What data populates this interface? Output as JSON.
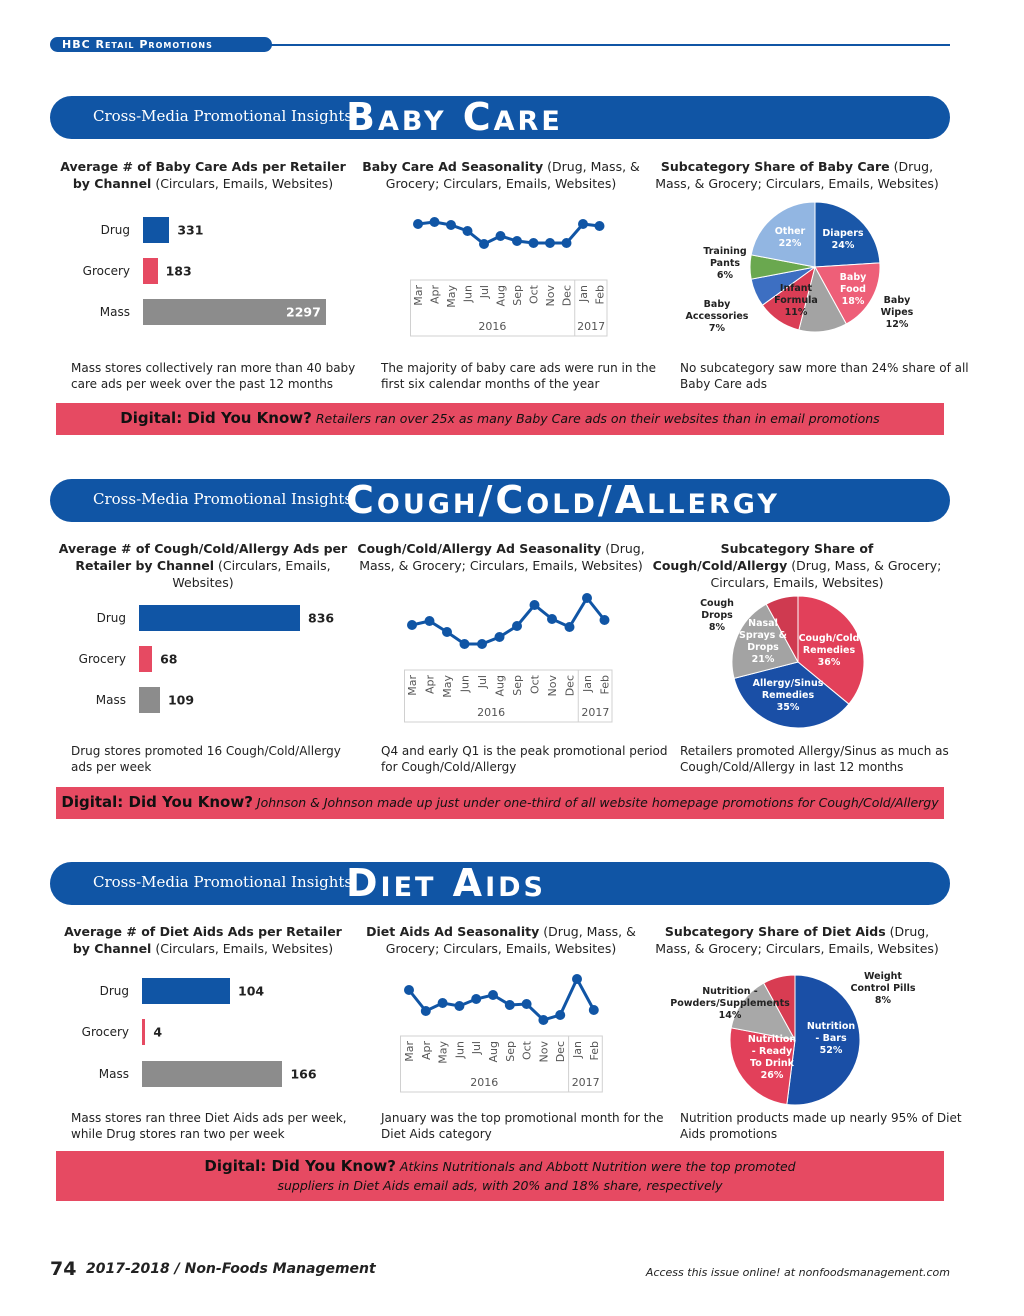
{
  "header": {
    "section": "HBC Retail Promotions"
  },
  "colors": {
    "brand_blue": "#1055a5",
    "dyk_red": "#e64a62",
    "bar_blue": "#1055a5",
    "bar_red": "#e64a62",
    "bar_gray": "#8c8c8c"
  },
  "sections": [
    {
      "subtitle": "Cross-Media Promotional Insights",
      "title": "Baby Care",
      "headings": [
        {
          "bold": "Average # of Baby Care Ads per Retailer by Channel",
          "normal": " (Circulars, Emails, Websites)"
        },
        {
          "bold": "Baby Care Ad Seasonality",
          "normal": " (Drug, Mass, & Grocery; Circulars, Emails, Websites)"
        },
        {
          "bold": "Subcategory Share of Baby Care",
          "normal": " (Drug, Mass, & Grocery; Circulars, Emails, Websites)"
        }
      ],
      "captions": [
        "Mass stores collectively ran more than 40 baby care ads per week over the past 12 months",
        "The majority of baby care ads were run in the first six calendar months of the year",
        "No subcategory saw more than 24% share of all Baby Care ads"
      ],
      "dyk": {
        "lead": "Digital: Did You Know?",
        "text": " Retailers ran over 25x as many Baby Care ads on their websites than in email promotions"
      }
    },
    {
      "subtitle": "Cross-Media Promotional Insights",
      "title": "Cough/Cold/Allergy",
      "headings": [
        {
          "bold": "Average # of Cough/Cold/Allergy Ads per Retailer by Channel",
          "normal": " (Circulars, Emails, Websites)"
        },
        {
          "bold": "Cough/Cold/Allergy Ad Seasonality",
          "normal": " (Drug, Mass, & Grocery; Circulars, Emails, Websites)"
        },
        {
          "bold": "Subcategory Share of Cough/Cold/Allergy",
          "normal": " (Drug, Mass, & Grocery; Circulars, Emails, Websites)"
        }
      ],
      "captions": [
        "Drug stores promoted 16 Cough/Cold/Allergy ads per week",
        "Q4 and early Q1 is the peak promotional period for Cough/Cold/Allergy",
        "Retailers promoted Allergy/Sinus as much as Cough/Cold/Allergy in last 12 months"
      ],
      "dyk": {
        "lead": "Digital: Did You Know?",
        "text": " Johnson & Johnson made up just under one-third of all website homepage promotions for Cough/Cold/Allergy"
      }
    },
    {
      "subtitle": "Cross-Media Promotional Insights",
      "title": "Diet Aids",
      "headings": [
        {
          "bold": "Average # of Diet Aids Ads per Retailer by Channel",
          "normal": " (Circulars, Emails, Websites)"
        },
        {
          "bold": "Diet Aids Ad Seasonality",
          "normal": " (Drug, Mass, & Grocery; Circulars, Emails, Websites)"
        },
        {
          "bold": "Subcategory Share of Diet Aids",
          "normal": " (Drug, Mass, & Grocery; Circulars, Emails, Websites)"
        }
      ],
      "captions": [
        "Mass stores ran three Diet Aids ads per week, while Drug stores ran two per week",
        "January was the top promotional month for the Diet Aids category",
        "Nutrition products made up nearly 95% of Diet Aids promotions"
      ],
      "dyk": {
        "lead": "Digital: Did You Know?",
        "text": " Atkins Nutritionals and Abbott Nutrition were the top promoted suppliers in Diet Aids email ads, with 20% and 18% share, respectively"
      }
    }
  ],
  "chart_data": [
    {
      "type": "bar",
      "orientation": "horizontal",
      "categories": [
        "Drug",
        "Grocery",
        "Mass"
      ],
      "values": [
        331,
        183,
        2297
      ],
      "colors": [
        "#1055a5",
        "#e64a62",
        "#8c8c8c"
      ]
    },
    {
      "type": "line",
      "categories": [
        "Mar",
        "Apr",
        "May",
        "Jun",
        "Jul",
        "Aug",
        "Sep",
        "Oct",
        "Nov",
        "Dec",
        "Jan",
        "Feb"
      ],
      "groups": [
        {
          "label": "2016",
          "count": 10
        },
        {
          "label": "2017",
          "count": 2
        }
      ],
      "values": [
        26,
        28,
        25,
        19,
        6,
        14,
        9,
        7,
        7,
        7,
        26,
        24
      ],
      "y_axis": "none (relative ad volume)",
      "color": "#1055a5"
    },
    {
      "type": "pie",
      "labels": [
        "Diapers",
        "Baby Food",
        "Baby Wipes",
        "Infant Formula",
        "Baby Accessories",
        "Training Pants",
        "Other"
      ],
      "values": [
        24,
        18,
        12,
        11,
        7,
        6,
        22
      ],
      "display": [
        "Diapers\n24%",
        "Baby\nFood\n18%",
        "Baby\nWipes\n12%",
        "Infant\nFormula\n11%",
        "Baby\nAccessories\n7%",
        "Training\nPants\n6%",
        "Other\n22%"
      ],
      "colors": [
        "#1a57a8",
        "#ee5f78",
        "#a3a3a3",
        "#da3d55",
        "#3d6fc2",
        "#6aa84f",
        "#92b6e2"
      ]
    },
    {
      "type": "bar",
      "orientation": "horizontal",
      "categories": [
        "Drug",
        "Grocery",
        "Mass"
      ],
      "values": [
        836,
        68,
        109
      ],
      "colors": [
        "#1055a5",
        "#e64a62",
        "#8c8c8c"
      ]
    },
    {
      "type": "line",
      "categories": [
        "Mar",
        "Apr",
        "May",
        "Jun",
        "Jul",
        "Aug",
        "Sep",
        "Oct",
        "Nov",
        "Dec",
        "Jan",
        "Feb"
      ],
      "groups": [
        {
          "label": "2016",
          "count": 10
        },
        {
          "label": "2017",
          "count": 2
        }
      ],
      "values": [
        25,
        29,
        18,
        6,
        6,
        13,
        24,
        45,
        31,
        23,
        52,
        30
      ],
      "y_axis": "none (relative ad volume)",
      "color": "#1055a5"
    },
    {
      "type": "pie",
      "labels": [
        "Cough/Cold Remedies",
        "Allergy/Sinus Remedies",
        "Nasal Sprays & Drops",
        "Cough Drops"
      ],
      "values": [
        36,
        35,
        21,
        8
      ],
      "display": [
        "Cough/Cold\nRemedies\n36%",
        "Allergy/Sinus\nRemedies\n35%",
        "Nasal\nSprays &\nDrops\n21%",
        "Cough\nDrops\n8%"
      ],
      "colors": [
        "#e2405a",
        "#1a4fa6",
        "#a3a3a3",
        "#cf3a50"
      ]
    },
    {
      "type": "bar",
      "orientation": "horizontal",
      "categories": [
        "Drug",
        "Grocery",
        "Mass"
      ],
      "values": [
        104,
        4,
        166
      ],
      "colors": [
        "#1055a5",
        "#e64a62",
        "#8c8c8c"
      ]
    },
    {
      "type": "line",
      "categories": [
        "Mar",
        "Apr",
        "May",
        "Jun",
        "Jul",
        "Aug",
        "Sep",
        "Oct",
        "Nov",
        "Dec",
        "Jan",
        "Feb"
      ],
      "groups": [
        {
          "label": "2016",
          "count": 10
        },
        {
          "label": "2017",
          "count": 2
        }
      ],
      "values": [
        35,
        14,
        22,
        19,
        26,
        30,
        20,
        21,
        5,
        10,
        46,
        15
      ],
      "y_axis": "none (relative ad volume)",
      "color": "#1055a5"
    },
    {
      "type": "pie",
      "labels": [
        "Nutrition - Bars",
        "Nutrition - Ready To Drink",
        "Nutrition - Powders/Supplements",
        "Weight Control Pills"
      ],
      "values": [
        52,
        26,
        14,
        8
      ],
      "display": [
        "Nutrition\n- Bars\n52%",
        "Nutrition\n- Ready\nTo Drink\n26%",
        "Nutrition -\nPowders/Supplements\n14%",
        "Weight\nControl Pills\n8%"
      ],
      "colors": [
        "#1a4fa6",
        "#e2405a",
        "#a8a8a8",
        "#d83c52"
      ]
    }
  ],
  "footer": {
    "page": "74",
    "publication": "2017-2018 / Non-Foods Management",
    "access": "Access this issue online! at nonfoodsmanagement.com"
  }
}
